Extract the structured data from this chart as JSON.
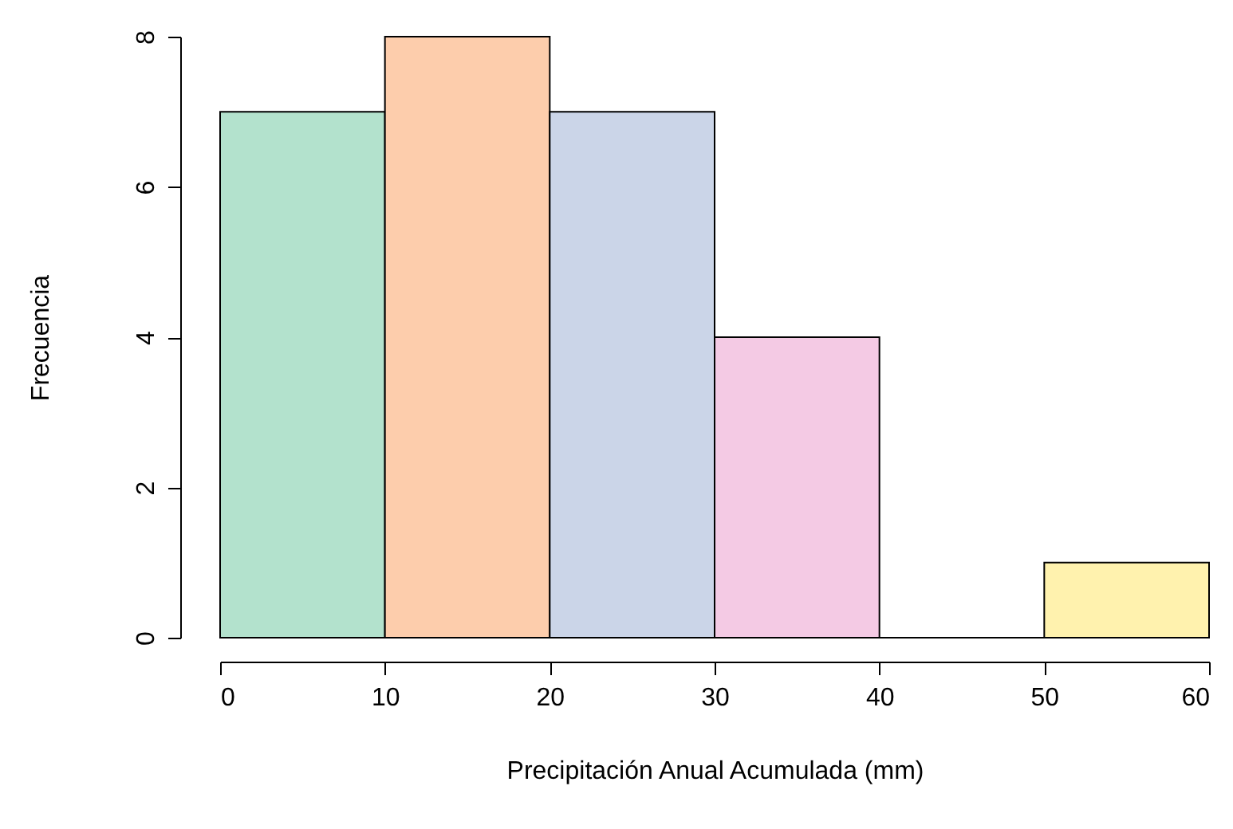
{
  "chart_data": {
    "type": "histogram",
    "xlabel": "Precipitación Anual Acumulada (mm)",
    "ylabel": "Frecuencia",
    "bins": [
      0,
      10,
      20,
      30,
      40,
      50,
      60
    ],
    "values": [
      7,
      8,
      7,
      4,
      0,
      1
    ],
    "colors": [
      "#b3e2cd",
      "#fdcdac",
      "#cbd5e8",
      "#f4cae4",
      "#000000",
      "#fff2ae"
    ],
    "xlim": [
      0,
      60
    ],
    "xticks": [
      0,
      10,
      20,
      30,
      40,
      50,
      60
    ],
    "ylim": [
      0,
      8
    ],
    "yticks": [
      0,
      2,
      4,
      6,
      8
    ],
    "grid": false
  }
}
